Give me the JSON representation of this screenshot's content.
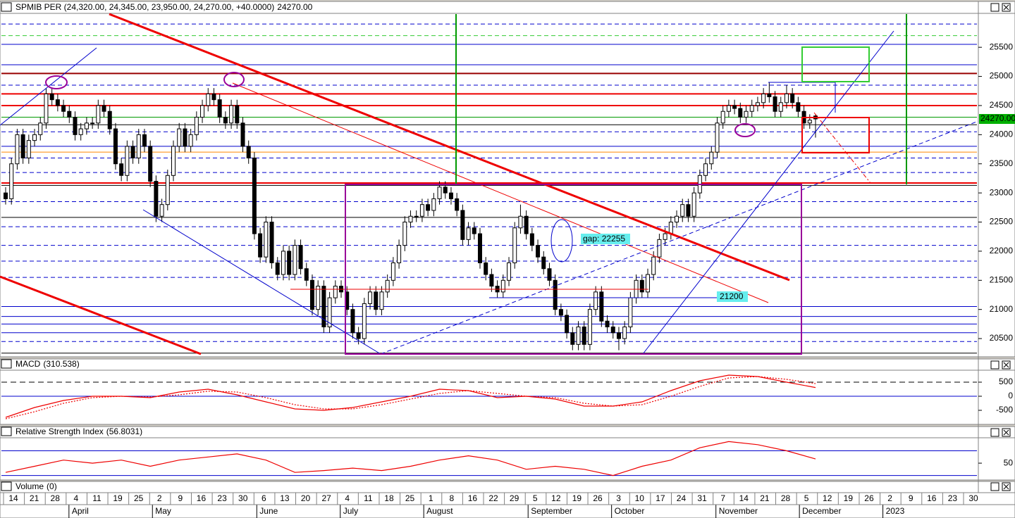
{
  "chart_data": [
    {
      "type": "candlestick",
      "title": "SPMIB PER (24,320.00, 24,345.00, 23,950.00, 24,270.00, +40.0000)",
      "ylim": [
        20235,
        26070
      ],
      "yticks": [
        20500,
        21000,
        21500,
        22000,
        22500,
        23000,
        23500,
        24000,
        24500,
        25000,
        25500
      ],
      "last_label": "24270.00",
      "candles": [
        [
          23000,
          23100,
          22800,
          22900
        ],
        [
          22900,
          23600,
          22800,
          23500
        ],
        [
          23500,
          24100,
          23400,
          24000
        ],
        [
          24000,
          24100,
          23500,
          23600
        ],
        [
          23600,
          24000,
          23500,
          23900
        ],
        [
          23900,
          24100,
          23800,
          24000
        ],
        [
          24000,
          24300,
          23900,
          24200
        ],
        [
          24200,
          24800,
          24100,
          24700
        ],
        [
          24700,
          24800,
          24500,
          24600
        ],
        [
          24600,
          24700,
          24400,
          24500
        ],
        [
          24500,
          24600,
          24300,
          24400
        ],
        [
          24400,
          24500,
          24200,
          24300
        ],
        [
          24300,
          24400,
          23900,
          24000
        ],
        [
          24000,
          24200,
          23900,
          24100
        ],
        [
          24100,
          24300,
          24000,
          24200
        ],
        [
          24200,
          24300,
          24100,
          24200
        ],
        [
          24200,
          24600,
          24100,
          24500
        ],
        [
          24500,
          24600,
          24300,
          24400
        ],
        [
          24400,
          24500,
          24000,
          24100
        ],
        [
          24100,
          24200,
          23400,
          23500
        ],
        [
          23500,
          23600,
          23200,
          23300
        ],
        [
          23300,
          23900,
          23200,
          23800
        ],
        [
          23800,
          23900,
          23500,
          23600
        ],
        [
          23600,
          24100,
          23500,
          24000
        ],
        [
          24000,
          24100,
          23700,
          23800
        ],
        [
          23800,
          23900,
          23100,
          23200
        ],
        [
          23200,
          23300,
          22500,
          22600
        ],
        [
          22600,
          22900,
          22500,
          22800
        ],
        [
          22800,
          23400,
          22700,
          23300
        ],
        [
          23300,
          23900,
          23200,
          23800
        ],
        [
          23800,
          24200,
          23700,
          24100
        ],
        [
          24100,
          24200,
          23700,
          23800
        ],
        [
          23800,
          24100,
          23700,
          24000
        ],
        [
          24000,
          24400,
          23900,
          24300
        ],
        [
          24300,
          24600,
          24200,
          24500
        ],
        [
          24500,
          24800,
          24400,
          24700
        ],
        [
          24700,
          24800,
          24500,
          24600
        ],
        [
          24600,
          24700,
          24200,
          24300
        ],
        [
          24300,
          24400,
          24100,
          24200
        ],
        [
          24200,
          24600,
          24100,
          24500
        ],
        [
          24500,
          24600,
          24100,
          24200
        ],
        [
          24200,
          24300,
          23700,
          23800
        ],
        [
          23800,
          23900,
          23500,
          23600
        ],
        [
          23600,
          23700,
          22200,
          22300
        ],
        [
          22300,
          22400,
          21800,
          21900
        ],
        [
          21900,
          22600,
          21800,
          22500
        ],
        [
          22500,
          22600,
          21700,
          21800
        ],
        [
          21800,
          21900,
          21500,
          21600
        ],
        [
          21600,
          22100,
          21500,
          22000
        ],
        [
          22000,
          22100,
          21500,
          21600
        ],
        [
          21600,
          22200,
          21500,
          22100
        ],
        [
          22100,
          22200,
          21600,
          21700
        ],
        [
          21700,
          21800,
          21400,
          21500
        ],
        [
          21500,
          21600,
          20900,
          21000
        ],
        [
          21000,
          21500,
          20900,
          21400
        ],
        [
          21400,
          21500,
          20600,
          20700
        ],
        [
          20700,
          21300,
          20600,
          21200
        ],
        [
          21200,
          21500,
          21100,
          21400
        ],
        [
          21400,
          21500,
          21200,
          21300
        ],
        [
          21300,
          21400,
          20900,
          21000
        ],
        [
          21000,
          21100,
          20500,
          20600
        ],
        [
          20600,
          20700,
          20400,
          20500
        ],
        [
          20500,
          21200,
          20400,
          21100
        ],
        [
          21100,
          21400,
          21000,
          21300
        ],
        [
          21300,
          21400,
          20900,
          21000
        ],
        [
          21000,
          21400,
          20900,
          21300
        ],
        [
          21300,
          21600,
          21200,
          21500
        ],
        [
          21500,
          21900,
          21400,
          21800
        ],
        [
          21800,
          22200,
          21700,
          22100
        ],
        [
          22100,
          22600,
          22000,
          22500
        ],
        [
          22500,
          22700,
          22400,
          22600
        ],
        [
          22600,
          22700,
          22500,
          22600
        ],
        [
          22600,
          22900,
          22500,
          22800
        ],
        [
          22800,
          22900,
          22600,
          22700
        ],
        [
          22700,
          23000,
          22600,
          22900
        ],
        [
          22900,
          23200,
          22800,
          23100
        ],
        [
          23100,
          23200,
          22900,
          23000
        ],
        [
          23000,
          23100,
          22800,
          22900
        ],
        [
          22900,
          23000,
          22600,
          22700
        ],
        [
          22700,
          22800,
          22100,
          22200
        ],
        [
          22200,
          22500,
          22100,
          22400
        ],
        [
          22400,
          22500,
          22200,
          22300
        ],
        [
          22300,
          22400,
          21700,
          21800
        ],
        [
          21800,
          21900,
          21500,
          21600
        ],
        [
          21600,
          21700,
          21300,
          21400
        ],
        [
          21400,
          21500,
          21200,
          21300
        ],
        [
          21300,
          21600,
          21200,
          21500
        ],
        [
          21500,
          21900,
          21400,
          21800
        ],
        [
          21800,
          22500,
          21700,
          22400
        ],
        [
          22400,
          22800,
          22300,
          22600
        ],
        [
          22600,
          22700,
          22200,
          22300
        ],
        [
          22300,
          22400,
          22000,
          22100
        ],
        [
          22100,
          22200,
          21800,
          21900
        ],
        [
          21900,
          22000,
          21600,
          21700
        ],
        [
          21700,
          21800,
          21400,
          21500
        ],
        [
          21500,
          21600,
          20900,
          21000
        ],
        [
          21000,
          21100,
          20800,
          20900
        ],
        [
          20900,
          21000,
          20500,
          20600
        ],
        [
          20600,
          20700,
          20300,
          20400
        ],
        [
          20400,
          20800,
          20300,
          20700
        ],
        [
          20700,
          20800,
          20300,
          20400
        ],
        [
          20400,
          21100,
          20300,
          21000
        ],
        [
          21000,
          21400,
          20900,
          21300
        ],
        [
          21300,
          21400,
          20700,
          20800
        ],
        [
          20800,
          20900,
          20600,
          20700
        ],
        [
          20700,
          20800,
          20500,
          20600
        ],
        [
          20600,
          20700,
          20300,
          20500
        ],
        [
          20500,
          20800,
          20400,
          20700
        ],
        [
          20700,
          21300,
          20600,
          21200
        ],
        [
          21200,
          21600,
          21100,
          21500
        ],
        [
          21500,
          21600,
          21200,
          21300
        ],
        [
          21300,
          21700,
          21200,
          21600
        ],
        [
          21600,
          22000,
          21500,
          21900
        ],
        [
          21900,
          22300,
          21800,
          22200
        ],
        [
          22200,
          22400,
          22100,
          22300
        ],
        [
          22300,
          22600,
          22200,
          22500
        ],
        [
          22500,
          22700,
          22400,
          22600
        ],
        [
          22600,
          22900,
          22500,
          22800
        ],
        [
          22800,
          22900,
          22500,
          22600
        ],
        [
          22600,
          23100,
          22500,
          23000
        ],
        [
          23000,
          23400,
          22900,
          23300
        ],
        [
          23300,
          23600,
          23200,
          23500
        ],
        [
          23500,
          23800,
          23400,
          23700
        ],
        [
          23700,
          24300,
          23600,
          24200
        ],
        [
          24200,
          24500,
          24100,
          24400
        ],
        [
          24400,
          24600,
          24300,
          24500
        ],
        [
          24500,
          24600,
          24350,
          24450
        ],
        [
          24450,
          24550,
          24200,
          24300
        ],
        [
          24300,
          24500,
          24200,
          24400
        ],
        [
          24400,
          24600,
          24300,
          24500
        ],
        [
          24500,
          24650,
          24400,
          24550
        ],
        [
          24550,
          24800,
          24450,
          24700
        ],
        [
          24700,
          24900,
          24550,
          24650
        ],
        [
          24650,
          24750,
          24300,
          24400
        ],
        [
          24400,
          24650,
          24300,
          24550
        ],
        [
          24550,
          24850,
          24450,
          24700
        ],
        [
          24700,
          24800,
          24450,
          24550
        ],
        [
          24550,
          24650,
          24300,
          24400
        ],
        [
          24400,
          24500,
          24100,
          24200
        ],
        [
          24200,
          24350,
          24100,
          24250
        ],
        [
          24320,
          24345,
          23950,
          24270
        ]
      ],
      "levels": [
        {
          "value": 25900,
          "color": "#0000cc",
          "dash": true
        },
        {
          "value": 25700,
          "color": "#33cc33",
          "dash": true
        },
        {
          "value": 25550,
          "color": "#0000cc",
          "dash": false
        },
        {
          "value": 25200,
          "color": "#0000cc",
          "dash": false
        },
        {
          "value": 25050,
          "color": "#990000",
          "dash": false
        },
        {
          "value": 24850,
          "color": "#0000cc",
          "dash": true
        },
        {
          "value": 24700,
          "color": "#ee0000",
          "dash": false
        },
        {
          "value": 24500,
          "color": "#ee0000",
          "dash": false
        },
        {
          "value": 24300,
          "color": "#009900",
          "dash": false
        },
        {
          "value": 24170,
          "color": "#000000",
          "dash": false
        },
        {
          "value": 24050,
          "color": "#0000cc",
          "dash": true
        },
        {
          "value": 23800,
          "color": "#0000cc",
          "dash": false
        },
        {
          "value": 23700,
          "color": "#ff8800",
          "dash": false
        },
        {
          "value": 23600,
          "color": "#0000cc",
          "dash": true
        },
        {
          "value": 23350,
          "color": "#0000cc",
          "dash": true
        },
        {
          "value": 23170,
          "color": "#ee0000",
          "dash": false
        },
        {
          "value": 23130,
          "color": "#000000",
          "dash": false
        },
        {
          "value": 22850,
          "color": "#0000cc",
          "dash": true
        },
        {
          "value": 22580,
          "color": "#000000",
          "dash": false
        },
        {
          "value": 22420,
          "color": "#0000cc",
          "dash": true
        },
        {
          "value": 22100,
          "color": "#0000cc",
          "dash": true
        },
        {
          "value": 21830,
          "color": "#0000cc",
          "dash": true
        },
        {
          "value": 21550,
          "color": "#0000cc",
          "dash": true
        },
        {
          "value": 21050,
          "color": "#0000cc",
          "dash": false
        },
        {
          "value": 20880,
          "color": "#0000cc",
          "dash": false
        },
        {
          "value": 20750,
          "color": "#0000cc",
          "dash": false
        },
        {
          "value": 20600,
          "color": "#0000cc",
          "dash": false
        },
        {
          "value": 20450,
          "color": "#0000cc",
          "dash": true
        },
        {
          "value": 20250,
          "color": "#000000",
          "dash": false
        }
      ],
      "annotations": [
        "gap: 22255",
        "21200"
      ],
      "x_days": [
        14,
        21,
        28,
        4,
        11,
        19,
        25,
        2,
        9,
        16,
        23,
        30,
        6,
        13,
        20,
        27,
        4,
        11,
        18,
        25,
        1,
        8,
        16,
        22,
        29,
        5,
        12,
        19,
        26,
        3,
        10,
        17,
        24,
        31,
        7,
        14,
        21,
        28,
        5,
        12,
        19,
        26,
        2,
        9,
        16,
        23,
        30
      ],
      "x_months": [
        "April",
        "May",
        "June",
        "July",
        "August",
        "September",
        "October",
        "November",
        "December",
        "2023"
      ]
    },
    {
      "type": "line",
      "title": "MACD",
      "last_label": "(310.538)",
      "ylim": [
        -925,
        875
      ],
      "yticks": [
        -500,
        0,
        500
      ],
      "levels": [
        {
          "value": 500,
          "color": "#000000",
          "dash": true
        },
        {
          "value": 0,
          "color": "#0000cc",
          "dash": false
        }
      ],
      "series": [
        {
          "color": "#ee0000",
          "dash": false,
          "values": [
            -750,
            -400,
            -150,
            0,
            0,
            -50,
            150,
            250,
            50,
            -200,
            -450,
            -500,
            -400,
            -200,
            0,
            250,
            200,
            -50,
            0,
            -100,
            -350,
            -350,
            -200,
            200,
            550,
            750,
            700,
            500,
            310.538
          ]
        },
        {
          "color": "#ee0000",
          "dash": true,
          "values": [
            -800,
            -550,
            -250,
            -50,
            0,
            -30,
            50,
            180,
            150,
            -50,
            -300,
            -450,
            -450,
            -300,
            -100,
            100,
            200,
            100,
            0,
            -50,
            -250,
            -350,
            -300,
            0,
            350,
            650,
            700,
            600,
            450
          ]
        }
      ]
    },
    {
      "type": "line",
      "title": "Relative Strength Index",
      "last_label": "(56.8031)",
      "ylim": [
        25,
        98
      ],
      "yticks": [
        50
      ],
      "levels": [
        {
          "value": 70,
          "color": "#0000cc",
          "dash": false
        },
        {
          "value": 30,
          "color": "#0000cc",
          "dash": false
        }
      ],
      "series": [
        {
          "color": "#ee0000",
          "dash": false,
          "values": [
            35,
            45,
            55,
            50,
            55,
            45,
            55,
            60,
            65,
            55,
            35,
            38,
            42,
            38,
            45,
            55,
            62,
            55,
            40,
            45,
            40,
            30,
            45,
            55,
            75,
            85,
            80,
            70,
            56.8031
          ]
        }
      ]
    },
    {
      "type": "bar",
      "title": "Volume",
      "last_label": "(0)"
    }
  ]
}
